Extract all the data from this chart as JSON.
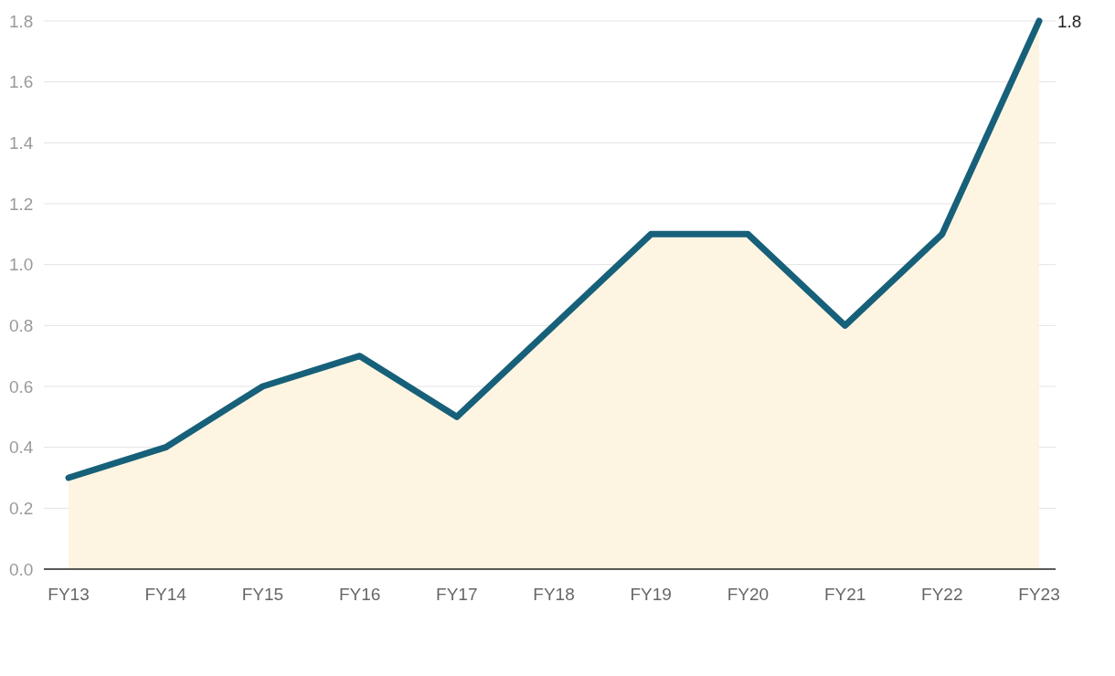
{
  "chart_data": {
    "type": "area",
    "color": "#fdf5e1",
    "categories": [
      "FY13",
      "FY14",
      "FY15",
      "FY16",
      "FY17",
      "FY18",
      "FY19",
      "FY20",
      "FY21",
      "FY22",
      "FY23"
    ],
    "series": [
      {
        "color": "#17607a",
        "values": [
          0.3,
          0.4,
          0.6,
          0.7,
          0.5,
          0.8,
          1.1,
          1.1,
          0.8,
          1.1,
          1.8
        ],
        "value_labels": [
          null,
          null,
          null,
          null,
          null,
          null,
          null,
          null,
          null,
          null,
          "1.8"
        ]
      }
    ],
    "ylim": [
      0,
      1.8
    ],
    "yticks": [
      {
        "value": 0,
        "label": "0.0"
      },
      {
        "value": 0.2,
        "label": "0.2"
      },
      {
        "value": 0.4,
        "label": "0.4"
      },
      {
        "value": 0.6,
        "label": "0.6"
      },
      {
        "value": 0.8,
        "label": "0.8"
      },
      {
        "value": 1,
        "label": "1.0"
      },
      {
        "value": 1.2,
        "label": "1.2"
      },
      {
        "value": 1.4,
        "label": "1.4"
      },
      {
        "value": 1.6,
        "label": "1.6"
      },
      {
        "value": 1.8,
        "label": "1.8"
      }
    ],
    "grid": "y",
    "marker": "none",
    "line_style": "solid"
  }
}
